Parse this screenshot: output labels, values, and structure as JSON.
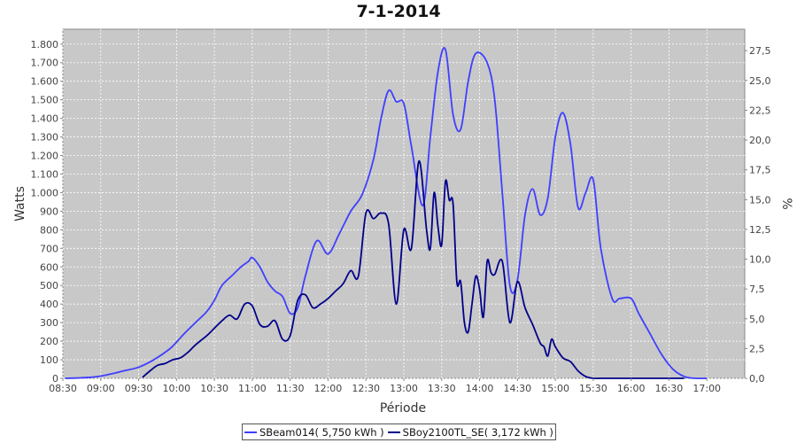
{
  "chart_data": {
    "type": "line",
    "title": "7-1-2014",
    "xlabel": "Période",
    "ylabel": "Watts",
    "ylabel_right": "%",
    "xlim": [
      8.5,
      17.5
    ],
    "ylim": [
      0,
      1880
    ],
    "ylim_right": [
      0,
      29.3
    ],
    "x_tick_labels": [
      "08:30",
      "09:00",
      "09:30",
      "10:00",
      "10:30",
      "11:00",
      "11:30",
      "12:00",
      "12:30",
      "13:00",
      "13:30",
      "14:00",
      "14:30",
      "15:00",
      "15:30",
      "16:00",
      "16:30",
      "17:00"
    ],
    "x_ticks": [
      8.5,
      9,
      9.5,
      10,
      10.5,
      11,
      11.5,
      12,
      12.5,
      13,
      13.5,
      14,
      14.5,
      15,
      15.5,
      16,
      16.5,
      17
    ],
    "y_ticks": [
      0,
      100,
      200,
      300,
      400,
      500,
      600,
      700,
      800,
      900,
      1000,
      1100,
      1200,
      1300,
      1400,
      1500,
      1600,
      1700,
      1800
    ],
    "y_tick_labels": [
      "0",
      "100",
      "200",
      "300",
      "400",
      "500",
      "600",
      "700",
      "800",
      "900",
      "1.000",
      "1.100",
      "1.200",
      "1.300",
      "1.400",
      "1.500",
      "1.600",
      "1.700",
      "1.800"
    ],
    "y_right_ticks": [
      0,
      2.5,
      5,
      7.5,
      10,
      12.5,
      15,
      17.5,
      20,
      22.5,
      25,
      27.5
    ],
    "y_right_tick_labels": [
      "0,0",
      "2,5",
      "5,0",
      "7,5",
      "10,0",
      "12,5",
      "15,0",
      "17,5",
      "20,0",
      "22,5",
      "25,0",
      "27,5"
    ],
    "grid": true,
    "legend_position": "bottom-center",
    "colors": {
      "plot_background": "#c8c8c8",
      "grid": "#ffffff",
      "series1": "#3f3fff",
      "series2": "#00008b"
    },
    "series": [
      {
        "name": "SBeam014( 5,750 kWh )",
        "x": [
          8.53,
          8.7,
          8.85,
          9.0,
          9.15,
          9.3,
          9.5,
          9.7,
          9.9,
          10.0,
          10.1,
          10.25,
          10.4,
          10.5,
          10.6,
          10.75,
          10.85,
          10.95,
          11.0,
          11.1,
          11.2,
          11.3,
          11.4,
          11.5,
          11.6,
          11.7,
          11.85,
          12.0,
          12.15,
          12.3,
          12.45,
          12.6,
          12.7,
          12.8,
          12.9,
          13.0,
          13.1,
          13.25,
          13.35,
          13.45,
          13.55,
          13.65,
          13.75,
          13.85,
          13.95,
          14.1,
          14.2,
          14.3,
          14.4,
          14.5,
          14.6,
          14.7,
          14.8,
          14.9,
          15.0,
          15.1,
          15.2,
          15.3,
          15.4,
          15.5,
          15.6,
          15.75,
          15.85,
          16.0,
          16.1,
          16.25,
          16.4,
          16.55,
          16.7,
          16.85,
          17.0
        ],
        "y": [
          0,
          2,
          5,
          12,
          25,
          40,
          60,
          100,
          155,
          195,
          240,
          300,
          360,
          420,
          500,
          560,
          600,
          630,
          650,
          600,
          520,
          470,
          440,
          350,
          380,
          550,
          740,
          670,
          780,
          900,
          990,
          1180,
          1400,
          1550,
          1490,
          1480,
          1250,
          930,
          1300,
          1650,
          1770,
          1420,
          1340,
          1600,
          1750,
          1700,
          1500,
          1000,
          500,
          530,
          880,
          1020,
          880,
          970,
          1300,
          1430,
          1260,
          920,
          1000,
          1070,
          700,
          430,
          430,
          430,
          350,
          240,
          130,
          50,
          10,
          0,
          0
        ]
      },
      {
        "name": "SBoy2100TL_SE( 3,172 kWh )",
        "x": [
          9.55,
          9.65,
          9.75,
          9.85,
          9.95,
          10.05,
          10.15,
          10.25,
          10.4,
          10.5,
          10.6,
          10.7,
          10.8,
          10.9,
          11.0,
          11.1,
          11.2,
          11.3,
          11.4,
          11.5,
          11.6,
          11.7,
          11.8,
          11.9,
          12.0,
          12.1,
          12.2,
          12.3,
          12.4,
          12.5,
          12.6,
          12.7,
          12.8,
          12.9,
          13.0,
          13.1,
          13.2,
          13.3,
          13.35,
          13.4,
          13.45,
          13.5,
          13.55,
          13.6,
          13.65,
          13.7,
          13.75,
          13.8,
          13.85,
          13.9,
          13.95,
          14.0,
          14.05,
          14.1,
          14.15,
          14.2,
          14.3,
          14.4,
          14.5,
          14.6,
          14.7,
          14.8,
          14.85,
          14.9,
          14.95,
          15.0,
          15.1,
          15.2,
          15.3,
          15.4,
          15.5,
          15.6,
          15.7,
          15.8,
          15.9,
          16.0,
          16.1,
          16.2,
          16.3,
          16.4,
          16.5,
          16.6,
          16.7
        ],
        "y": [
          5,
          40,
          70,
          80,
          100,
          110,
          140,
          180,
          230,
          270,
          310,
          340,
          320,
          400,
          390,
          290,
          280,
          310,
          210,
          230,
          420,
          450,
          380,
          400,
          430,
          470,
          510,
          580,
          550,
          890,
          860,
          890,
          830,
          400,
          800,
          700,
          1170,
          800,
          700,
          1000,
          820,
          720,
          1060,
          960,
          940,
          520,
          520,
          300,
          250,
          400,
          550,
          480,
          330,
          630,
          570,
          560,
          630,
          300,
          520,
          380,
          290,
          190,
          170,
          120,
          210,
          170,
          110,
          90,
          40,
          10,
          0,
          0,
          0,
          0,
          0,
          0,
          0,
          0,
          0,
          0,
          0,
          0,
          0
        ]
      }
    ]
  }
}
